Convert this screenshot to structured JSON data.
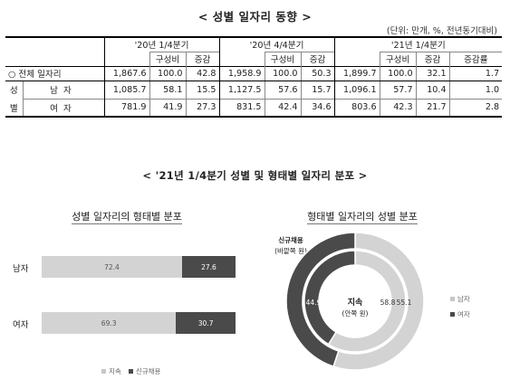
{
  "title": "< 성별 일자리 동향 >",
  "unit": "(단위: 만개, %, 전년동기대비)",
  "table": {
    "period_headers": [
      "'20년 1/4분기",
      "'20년 4/4분기",
      "'21년 1/4분기"
    ],
    "sub_headers": {
      "composition": "구성비",
      "change": "증감",
      "change_rate": "증감률"
    },
    "total": {
      "label": "○ 전체 일자리",
      "values": [
        "1,867.6",
        "100.0",
        "42.8",
        "1,958.9",
        "100.0",
        "50.3",
        "1,899.7",
        "100.0",
        "32.1",
        "1.7"
      ]
    },
    "group_label": [
      "성",
      "별"
    ],
    "rows": [
      {
        "label": "남자",
        "values": [
          "1,085.7",
          "58.1",
          "15.5",
          "1,127.5",
          "57.6",
          "15.7",
          "1,096.1",
          "57.7",
          "10.4",
          "1.0"
        ]
      },
      {
        "label": "여자",
        "values": [
          "781.9",
          "41.9",
          "27.3",
          "831.5",
          "42.4",
          "34.6",
          "803.6",
          "42.3",
          "21.7",
          "2.8"
        ]
      }
    ]
  },
  "section_title": "< '21년 1/4분기 성별 및 형태별 일자리 분포 >",
  "bar_chart": {
    "title": "성별 일자리의 형태별 분포",
    "categories": [
      "남자",
      "여자"
    ],
    "series": [
      {
        "name": "지속",
        "values": [
          72.4,
          69.3
        ],
        "labels": [
          "72.4",
          "69.3"
        ]
      },
      {
        "name": "신규채용",
        "values": [
          27.6,
          30.7
        ],
        "labels": [
          "27.6",
          "30.7"
        ]
      }
    ],
    "colors": {
      "sustained": "#d3d3d3",
      "new_hire": "#4a4a4a"
    }
  },
  "donut_chart": {
    "title": "형태별 일자리의 성별 분포",
    "outer_ring_label": "신규채용",
    "outer_ring_sub": "(바깥쪽 원)",
    "inner_ring_label": "지속",
    "inner_ring_sub": "(안쪽 원)",
    "outer": {
      "male": 55.1,
      "female": 44.9,
      "male_label": "55.1",
      "female_label": "44.9"
    },
    "inner": {
      "male": 58.8,
      "female": 41.2,
      "male_label": "58.8",
      "female_label": "41.2"
    },
    "legend": [
      "남자",
      "여자"
    ],
    "colors": {
      "male": "#d3d3d3",
      "female": "#4a4a4a"
    }
  }
}
